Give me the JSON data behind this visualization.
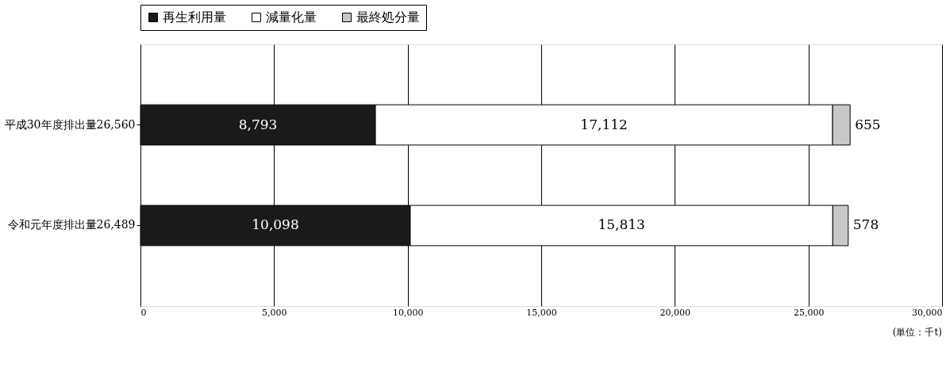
{
  "chart_data": {
    "type": "bar",
    "orientation": "horizontal",
    "stacked": true,
    "categories": [
      "平成30年度排出量26,560",
      "令和元年度排出量26,489"
    ],
    "series": [
      {
        "name": "再生利用量",
        "color": "#1a1a1a",
        "values": [
          8793,
          10098
        ],
        "value_labels": [
          "8,793",
          "10,098"
        ]
      },
      {
        "name": "減量化量",
        "color": "#ffffff",
        "values": [
          17112,
          15813
        ],
        "value_labels": [
          "17,112",
          "15,813"
        ]
      },
      {
        "name": "最終処分量",
        "color": "#c8c8c8",
        "values": [
          655,
          578
        ],
        "value_labels": [
          "655",
          "578"
        ]
      }
    ],
    "xlim": [
      0,
      30000
    ],
    "xticks": [
      {
        "value": 0,
        "label": "0"
      },
      {
        "value": 5000,
        "label": "5,000"
      },
      {
        "value": 10000,
        "label": "10,000"
      },
      {
        "value": 15000,
        "label": "15,000"
      },
      {
        "value": 20000,
        "label": "20,000"
      },
      {
        "value": 25000,
        "label": "25,000"
      },
      {
        "value": 30000,
        "label": "30,000"
      }
    ],
    "grid": "x",
    "legend": "top",
    "annotations": [
      "(単位：千t)"
    ]
  }
}
